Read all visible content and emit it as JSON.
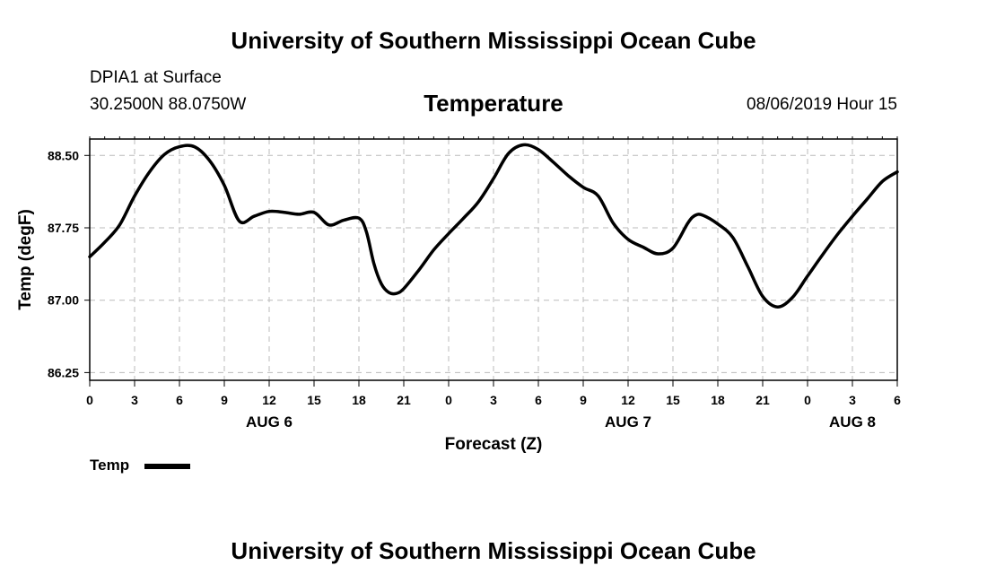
{
  "header": {
    "title": "University of Southern Mississippi Ocean Cube",
    "station": "DPIA1 at Surface",
    "coords": "30.2500N 88.0750W",
    "chart_title": "Temperature",
    "datetime": "08/06/2019 Hour 15"
  },
  "footer": {
    "title": "University of Southern Mississippi Ocean Cube"
  },
  "legend": {
    "label": "Temp",
    "color": "#000000"
  },
  "chart_data": {
    "type": "line",
    "title": "Temperature",
    "xlabel": "Forecast (Z)",
    "ylabel": "Temp (degF)",
    "xlim": [
      0,
      54
    ],
    "ylim": [
      86.17,
      88.67
    ],
    "yticks": [
      86.25,
      87.0,
      87.75,
      88.5
    ],
    "ytick_labels": [
      "86.25",
      "87.00",
      "87.75",
      "88.50"
    ],
    "xticks": [
      0,
      3,
      6,
      9,
      12,
      15,
      18,
      21,
      24,
      27,
      30,
      33,
      36,
      39,
      42,
      45,
      48,
      51,
      54
    ],
    "xtick_labels": [
      "0",
      "3",
      "6",
      "9",
      "12",
      "15",
      "18",
      "21",
      "0",
      "3",
      "6",
      "9",
      "12",
      "15",
      "18",
      "21",
      "0",
      "3",
      "6"
    ],
    "day_labels": [
      {
        "x": 12,
        "label": "AUG 6"
      },
      {
        "x": 36,
        "label": "AUG 7"
      },
      {
        "x": 51,
        "label": "AUG 8"
      }
    ],
    "grid": true,
    "series": [
      {
        "name": "Temp",
        "color": "#000000",
        "x": [
          0,
          1,
          2,
          3,
          4,
          5,
          6,
          7,
          8,
          9,
          10,
          11,
          12,
          13,
          14,
          15,
          16,
          17,
          18,
          18.5,
          19,
          19.5,
          20,
          20.5,
          21,
          22,
          23,
          24,
          25,
          26,
          27,
          28,
          29,
          30,
          31,
          32,
          33,
          34,
          35,
          36,
          37,
          38,
          39,
          40,
          40.5,
          41,
          42,
          43,
          44,
          45,
          46,
          47,
          48,
          49,
          50,
          51,
          52,
          53,
          54
        ],
        "values": [
          87.45,
          87.6,
          87.78,
          88.08,
          88.33,
          88.51,
          88.59,
          88.59,
          88.45,
          88.19,
          87.82,
          87.87,
          87.92,
          87.91,
          87.89,
          87.91,
          87.78,
          87.83,
          87.85,
          87.71,
          87.38,
          87.17,
          87.08,
          87.07,
          87.12,
          87.31,
          87.52,
          87.69,
          87.85,
          88.02,
          88.26,
          88.52,
          88.61,
          88.56,
          88.43,
          88.29,
          88.17,
          88.08,
          87.8,
          87.63,
          87.55,
          87.48,
          87.54,
          87.8,
          87.88,
          87.88,
          87.79,
          87.65,
          87.35,
          87.04,
          86.93,
          87.03,
          87.25,
          87.47,
          87.68,
          87.87,
          88.05,
          88.23,
          88.33
        ]
      }
    ]
  }
}
